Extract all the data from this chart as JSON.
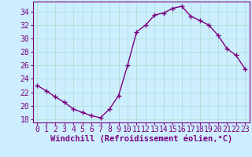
{
  "x": [
    0,
    1,
    2,
    3,
    4,
    5,
    6,
    7,
    8,
    9,
    10,
    11,
    12,
    13,
    14,
    15,
    16,
    17,
    18,
    19,
    20,
    21,
    22,
    23
  ],
  "y": [
    23.0,
    22.2,
    21.3,
    20.5,
    19.5,
    19.0,
    18.5,
    18.2,
    19.5,
    21.5,
    26.0,
    31.0,
    32.0,
    33.5,
    33.8,
    34.5,
    34.8,
    33.3,
    32.7,
    32.0,
    30.5,
    28.5,
    27.5,
    25.5
  ],
  "line_color": "#7B0080",
  "marker": "+",
  "marker_size": 4,
  "marker_lw": 1.0,
  "line_width": 1.0,
  "bg_color": "#cceeff",
  "grid_color": "#aaddcc",
  "xlabel": "Windchill (Refroidissement éolien,°C)",
  "xlabel_fontsize": 7.5,
  "tick_fontsize": 7,
  "ylim": [
    17.5,
    35.5
  ],
  "xlim": [
    -0.5,
    23.5
  ],
  "yticks": [
    18,
    20,
    22,
    24,
    26,
    28,
    30,
    32,
    34
  ],
  "xticks": [
    0,
    1,
    2,
    3,
    4,
    5,
    6,
    7,
    8,
    9,
    10,
    11,
    12,
    13,
    14,
    15,
    16,
    17,
    18,
    19,
    20,
    21,
    22,
    23
  ]
}
